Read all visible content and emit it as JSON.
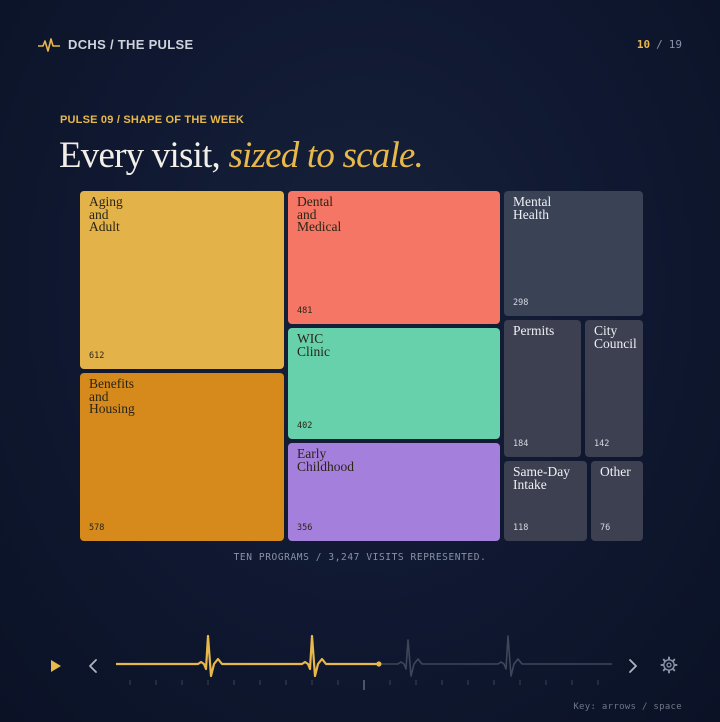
{
  "header": {
    "brand": "DCHS / THE PULSE",
    "slide_current": "10",
    "slide_separator": "/",
    "slide_total": "19"
  },
  "eyebrow": "PULSE 09 / SHAPE OF THE WEEK",
  "headline": {
    "plain": "Every visit, ",
    "emphasis": "sized to scale."
  },
  "treemap": {
    "tiles": [
      {
        "label": "Aging\nand\nAdult",
        "value": "612",
        "color": "#e3b34a",
        "tone": "light"
      },
      {
        "label": "Benefits\nand\nHousing",
        "value": "578",
        "color": "#d68a1c",
        "tone": "light"
      },
      {
        "label": "Dental\nand\nMedical",
        "value": "481",
        "color": "#f57664",
        "tone": "light"
      },
      {
        "label": "WIC\nClinic",
        "value": "402",
        "color": "#66d1aa",
        "tone": "light"
      },
      {
        "label": "Early\nChildhood",
        "value": "356",
        "color": "#a57fdc",
        "tone": "light"
      },
      {
        "label": "Mental\nHealth",
        "value": "298",
        "color": "#3a4256",
        "tone": "dark"
      },
      {
        "label": "Permits",
        "value": "184",
        "color": "#3c4050",
        "tone": "dark"
      },
      {
        "label": "City\nCouncil",
        "value": "142",
        "color": "#3c4050",
        "tone": "dark"
      },
      {
        "label": "Same-Day\nIntake",
        "value": "118",
        "color": "#3c4050",
        "tone": "dark"
      },
      {
        "label": "Other",
        "value": "76",
        "color": "#3c4050",
        "tone": "dark"
      }
    ]
  },
  "caption": "TEN PROGRAMS / 3,247 VISITS REPRESENTED.",
  "player": {
    "progress": 0.53,
    "accent": "#e8b84a",
    "muted": "#3f4659"
  },
  "icons": {
    "brand": "pulse-icon",
    "play": "play-icon",
    "prev": "chevron-left-icon",
    "next": "chevron-right-icon",
    "settings": "gear-icon"
  },
  "keyhint": "Key: arrows / space"
}
